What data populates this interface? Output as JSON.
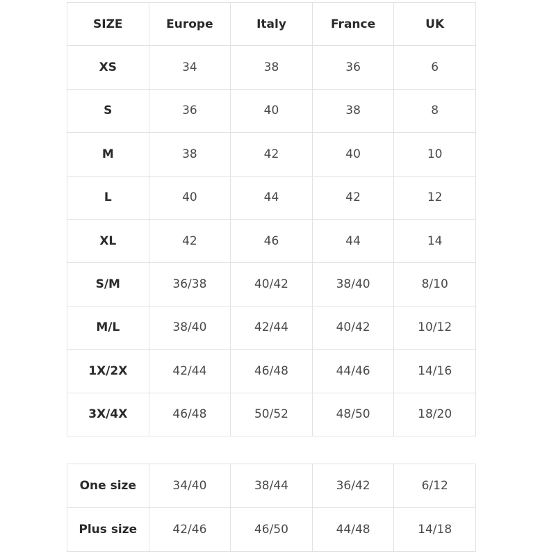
{
  "main_table": {
    "headers": [
      "SIZE",
      "Europe",
      "Italy",
      "France",
      "UK"
    ],
    "rows": [
      [
        "XS",
        "34",
        "38",
        "36",
        "6"
      ],
      [
        "S",
        "36",
        "40",
        "38",
        "8"
      ],
      [
        "M",
        "38",
        "42",
        "40",
        "10"
      ],
      [
        "L",
        "40",
        "44",
        "42",
        "12"
      ],
      [
        "XL",
        "42",
        "46",
        "44",
        "14"
      ],
      [
        "S/M",
        "36/38",
        "40/42",
        "38/40",
        "8/10"
      ],
      [
        "M/L",
        "38/40",
        "42/44",
        "40/42",
        "10/12"
      ],
      [
        "1X/2X",
        "42/44",
        "46/48",
        "44/46",
        "14/16"
      ],
      [
        "3X/4X",
        "46/48",
        "50/52",
        "48/50",
        "18/20"
      ]
    ]
  },
  "extra_table": {
    "rows": [
      [
        "One size",
        "34/40",
        "38/44",
        "36/42",
        "6/12"
      ],
      [
        "Plus size",
        "42/46",
        "46/50",
        "44/48",
        "14/18"
      ]
    ]
  }
}
